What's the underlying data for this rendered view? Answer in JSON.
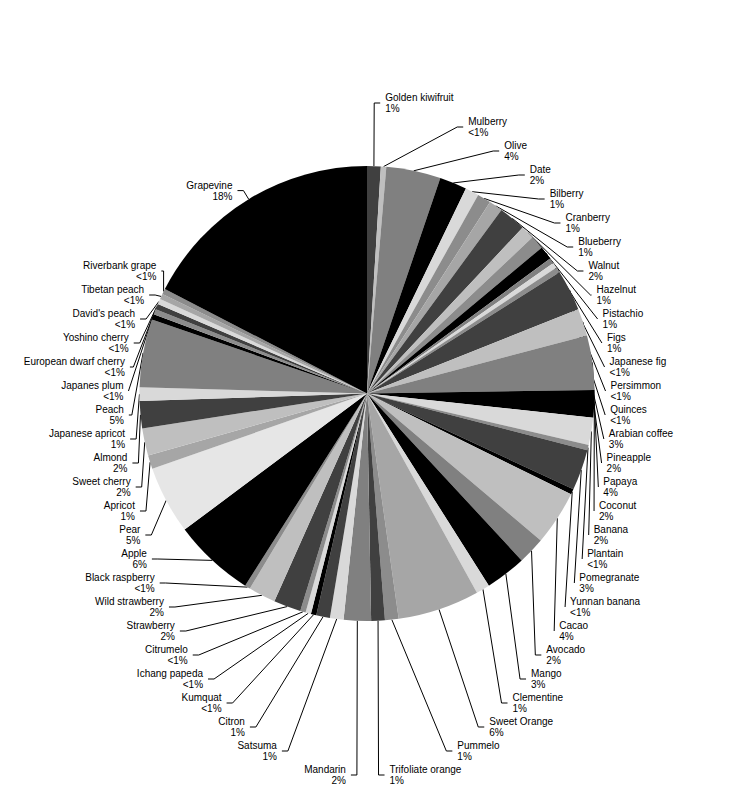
{
  "chart_data": {
    "type": "pie",
    "data_labels": true,
    "categories": [
      "Golden kiwifruit",
      "Mulberry",
      "Olive",
      "Date",
      "Bilberry",
      "Cranberry",
      "Blueberry",
      "Walnut",
      "Hazelnut",
      "Pistachio",
      "Figs",
      "Japanese fig",
      "Persimmon",
      "Quinces",
      "Arabian coffee",
      "Pineapple",
      "Papaya",
      "Coconut",
      "Banana",
      "Plantain",
      "Pomegranate",
      "Yunnan banana",
      "Cacao",
      "Avocado",
      "Mango",
      "Clementine",
      "Sweet Orange",
      "Pummelo",
      "Trifoliate orange",
      "Mandarin",
      "Satsuma",
      "Citron",
      "Kumquat",
      "Ichang papeda",
      "Citrumelo",
      "Strawberry",
      "Wild strawberry",
      "Black raspberry",
      "Apple",
      "Pear",
      "Apricot",
      "Sweet cherry",
      "Almond",
      "Japanese apricot",
      "Peach",
      "Japanes plum",
      "European dwarf cherry",
      "Yoshino cherry",
      "David's peach",
      "Tibetan peach",
      "Riverbank grape",
      "Grapevine"
    ],
    "values": [
      1,
      0.4,
      4,
      2,
      1,
      1,
      1,
      2,
      1,
      1,
      1,
      0.4,
      0.4,
      0.4,
      3,
      2,
      4,
      2,
      2,
      0.4,
      3,
      0.4,
      4,
      2,
      3,
      1,
      6,
      1,
      1,
      2,
      1,
      1,
      0.4,
      0.4,
      0.4,
      2,
      2,
      0.4,
      6,
      5,
      1,
      2,
      2,
      1,
      5,
      0.4,
      0.4,
      0.4,
      0.4,
      0.4,
      0.4,
      18
    ],
    "value_labels": [
      "1%",
      "<1%",
      "4%",
      "2%",
      "1%",
      "1%",
      "1%",
      "2%",
      "1%",
      "1%",
      "1%",
      "<1%",
      "<1%",
      "<1%",
      "3%",
      "2%",
      "4%",
      "2%",
      "2%",
      "<1%",
      "3%",
      "<1%",
      "4%",
      "2%",
      "3%",
      "1%",
      "6%",
      "1%",
      "1%",
      "2%",
      "1%",
      "1%",
      "<1%",
      "<1%",
      "<1%",
      "2%",
      "2%",
      "<1%",
      "6%",
      "5%",
      "1%",
      "2%",
      "2%",
      "1%",
      "5%",
      "<1%",
      "<1%",
      "<1%",
      "<1%",
      "<1%",
      "<1%",
      "18%"
    ],
    "colors": [
      "#404040",
      "#bfbfbf",
      "#808080",
      "#000000",
      "#d9d9d9",
      "#8c8c8c",
      "#a6a6a6",
      "#404040",
      "#bfbfbf",
      "#8c8c8c",
      "#000000",
      "#808080",
      "#d9d9d9",
      "#8c8c8c",
      "#404040",
      "#bfbfbf",
      "#808080",
      "#000000",
      "#d9d9d9",
      "#8c8c8c",
      "#404040",
      "#000000",
      "#bfbfbf",
      "#808080",
      "#000000",
      "#d9d9d9",
      "#a6a6a6",
      "#8c8c8c",
      "#404040",
      "#808080",
      "#d9d9d9",
      "#404040",
      "#000000",
      "#d9d9d9",
      "#8c8c8c",
      "#404040",
      "#bfbfbf",
      "#8c8c8c",
      "#000000",
      "#e6e6e6",
      "#a6a6a6",
      "#bfbfbf",
      "#404040",
      "#d9d9d9",
      "#808080",
      "#000000",
      "#8c8c8c",
      "#404040",
      "#d9d9d9",
      "#a6a6a6",
      "#8c8c8c",
      "#000000"
    ]
  }
}
